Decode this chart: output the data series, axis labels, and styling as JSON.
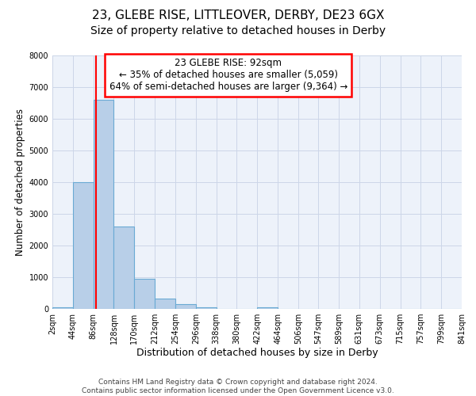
{
  "title": "23, GLEBE RISE, LITTLEOVER, DERBY, DE23 6GX",
  "subtitle": "Size of property relative to detached houses in Derby",
  "xlabel": "Distribution of detached houses by size in Derby",
  "ylabel": "Number of detached properties",
  "bin_edges": [
    2,
    44,
    86,
    128,
    170,
    212,
    254,
    296,
    338,
    380,
    422,
    464,
    506,
    547,
    589,
    631,
    673,
    715,
    757,
    799,
    841
  ],
  "bar_heights": [
    50,
    4000,
    6600,
    2600,
    950,
    330,
    150,
    50,
    0,
    0,
    50,
    0,
    0,
    0,
    0,
    0,
    0,
    0,
    0,
    0
  ],
  "bar_color": "#b8cfe8",
  "bar_edgecolor": "#6aaad4",
  "bar_linewidth": 0.8,
  "vline_x": 92,
  "vline_color": "red",
  "vline_linewidth": 1.5,
  "ylim": [
    0,
    8000
  ],
  "yticks": [
    0,
    1000,
    2000,
    3000,
    4000,
    5000,
    6000,
    7000,
    8000
  ],
  "xtick_labels": [
    "2sqm",
    "44sqm",
    "86sqm",
    "128sqm",
    "170sqm",
    "212sqm",
    "254sqm",
    "296sqm",
    "338sqm",
    "380sqm",
    "422sqm",
    "464sqm",
    "506sqm",
    "547sqm",
    "589sqm",
    "631sqm",
    "673sqm",
    "715sqm",
    "757sqm",
    "799sqm",
    "841sqm"
  ],
  "annotation_title": "23 GLEBE RISE: 92sqm",
  "annotation_line1": "← 35% of detached houses are smaller (5,059)",
  "annotation_line2": "64% of semi-detached houses are larger (9,364) →",
  "annotation_box_color": "white",
  "annotation_box_edgecolor": "red",
  "grid_color": "#ccd6e8",
  "bg_color": "#edf2fa",
  "footer1": "Contains HM Land Registry data © Crown copyright and database right 2024.",
  "footer2": "Contains public sector information licensed under the Open Government Licence v3.0.",
  "title_fontsize": 11,
  "subtitle_fontsize": 10,
  "xlabel_fontsize": 9,
  "ylabel_fontsize": 8.5,
  "tick_fontsize": 7,
  "annotation_fontsize": 8.5,
  "footer_fontsize": 6.5
}
